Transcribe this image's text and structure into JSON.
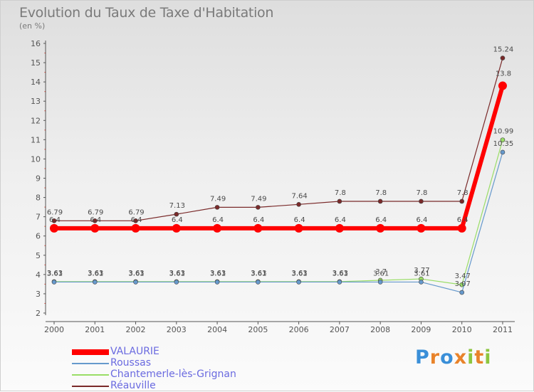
{
  "chart_data": {
    "type": "line",
    "title": "Evolution du Taux de Taxe d'Habitation",
    "ylabel": "(en %)",
    "xlabel": "",
    "x": [
      "2000",
      "2001",
      "2002",
      "2003",
      "2004",
      "2005",
      "2006",
      "2007",
      "2008",
      "2009",
      "2010",
      "2011"
    ],
    "ylim": [
      2,
      16
    ],
    "yticks": [
      "2",
      "3",
      "4",
      "5",
      "6",
      "7",
      "8",
      "9",
      "10",
      "11",
      "12",
      "13",
      "14",
      "15",
      "16"
    ],
    "grid": false,
    "legend": "bottom-left",
    "series": [
      {
        "name": "VALAURIE",
        "color": "#ff0000",
        "width": 6,
        "marker": 6,
        "values": [
          6.4,
          6.4,
          6.4,
          6.4,
          6.4,
          6.4,
          6.4,
          6.4,
          6.4,
          6.4,
          6.4,
          13.8
        ],
        "labels": [
          "6.4",
          "6.4",
          "6.4",
          "6.4",
          "6.4",
          "6.4",
          "6.4",
          "6.4",
          "6.4",
          "6.4",
          "6.4",
          "13.8"
        ]
      },
      {
        "name": "Roussas",
        "color": "#6699cc",
        "width": 1.2,
        "marker": 3,
        "values": [
          3.61,
          3.61,
          3.61,
          3.61,
          3.61,
          3.61,
          3.61,
          3.61,
          3.61,
          3.61,
          3.07,
          10.35
        ],
        "labels": [
          "3.61",
          "3.61",
          "3.61",
          "3.61",
          "3.61",
          "3.61",
          "3.61",
          "3.61",
          "3.61",
          "3.61",
          "3.07",
          "10.35"
        ]
      },
      {
        "name": "Chantemerle-lès-Grignan",
        "color": "#99dd66",
        "width": 1.2,
        "marker": 3,
        "values": [
          3.63,
          3.63,
          3.63,
          3.63,
          3.63,
          3.63,
          3.63,
          3.63,
          3.7,
          3.77,
          3.47,
          10.99
        ],
        "labels": [
          "3.63",
          "3.63",
          "3.63",
          "3.63",
          "3.63",
          "3.63",
          "3.63",
          "3.63",
          "3.7",
          "3.77",
          "3.47",
          "10.99"
        ]
      },
      {
        "name": "Réauville",
        "color": "#7a2a2a",
        "width": 1.2,
        "marker": 3,
        "values": [
          6.79,
          6.79,
          6.79,
          7.13,
          7.49,
          7.49,
          7.64,
          7.8,
          7.8,
          7.8,
          7.8,
          15.24
        ],
        "labels": [
          "6.79",
          "6.79",
          "6.79",
          "7.13",
          "7.49",
          "7.49",
          "7.64",
          "7.8",
          "7.8",
          "7.8",
          "7.8",
          "15.24"
        ]
      }
    ]
  },
  "logo": {
    "letters": [
      "P",
      "r",
      "o",
      "x",
      "i",
      "t",
      "i"
    ],
    "colors": [
      "#3a8fd8",
      "#e8832a",
      "#3a8fd8",
      "#e8832a",
      "#8cc63f",
      "#e8832a",
      "#8cc63f"
    ]
  }
}
